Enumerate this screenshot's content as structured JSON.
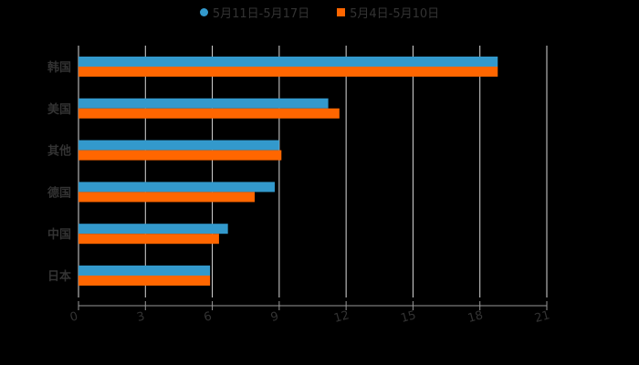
{
  "legend": {
    "series_0": "5月11日-5月17日",
    "series_1": "5月4日-5月10日"
  },
  "colors": {
    "series_0": "#3399cc",
    "series_1": "#ff6600",
    "grid": "#d9d9d9",
    "axis": "#999999",
    "text": "#333333"
  },
  "chart_data": {
    "type": "bar",
    "orientation": "horizontal",
    "title": "",
    "xlabel": "",
    "ylabel": "",
    "categories": [
      "韩国",
      "美国",
      "其他",
      "德国",
      "中国",
      "日本"
    ],
    "series": [
      {
        "name": "5月11日-5月17日",
        "values": [
          18.8,
          11.2,
          9.0,
          8.8,
          6.7,
          5.9
        ]
      },
      {
        "name": "5月4日-5月10日",
        "values": [
          18.8,
          11.7,
          9.1,
          7.9,
          6.3,
          5.9
        ]
      }
    ],
    "xlim": [
      0,
      21
    ],
    "xticks": [
      "0",
      "3",
      "6",
      "9",
      "12",
      "15",
      "18",
      "21"
    ],
    "grid": true,
    "legend_position": "top"
  }
}
